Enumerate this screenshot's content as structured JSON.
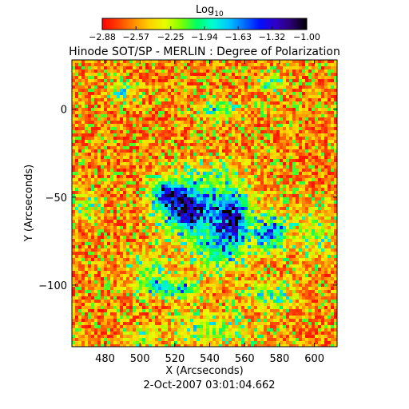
{
  "chart_data": {
    "type": "heatmap",
    "title": "Hinode SOT/SP - MERLIN : Degree of Polarization",
    "date": "2-Oct-2007 03:01:04.662",
    "xlabel": "X (Arcseconds)",
    "ylabel": "Y (Arcseconds)",
    "xlim": [
      461,
      613
    ],
    "ylim": [
      -135,
      28
    ],
    "x_ticks": [
      480,
      500,
      520,
      540,
      560,
      580,
      600
    ],
    "y_ticks": [
      0,
      -50,
      -100
    ],
    "colorbar": {
      "label_main": "Log",
      "label_sub": "10",
      "range": [
        -2.88,
        -1.0
      ],
      "tick_labels": [
        "-2.88",
        "-2.57",
        "-2.25",
        "-1.94",
        "-1.63",
        "-1.32",
        "-1.00"
      ],
      "tick_values": [
        -2.88,
        -2.57,
        -2.25,
        -1.94,
        -1.63,
        -1.32,
        -1.0
      ],
      "colors": [
        "#ff0000",
        "#ff4000",
        "#ff8c00",
        "#ffd000",
        "#e6ff00",
        "#80ff00",
        "#00ff60",
        "#00ffd0",
        "#00c8ff",
        "#0070ff",
        "#0010ff",
        "#3000c8",
        "#2a0070",
        "#000000"
      ]
    },
    "background_value": -2.85,
    "active_regions": [
      {
        "x": 528,
        "y": -58,
        "sx": 11,
        "sy": 9,
        "peak": 1.0
      },
      {
        "x": 553,
        "y": -62,
        "sx": 7,
        "sy": 10,
        "peak": 0.95
      },
      {
        "x": 516,
        "y": -48,
        "sx": 6,
        "sy": 5,
        "peak": 0.8
      },
      {
        "x": 575,
        "y": -70,
        "sx": 6,
        "sy": 7,
        "peak": 0.75
      },
      {
        "x": 510,
        "y": -100,
        "sx": 9,
        "sy": 4,
        "peak": 0.55
      },
      {
        "x": 527,
        "y": -102,
        "sx": 6,
        "sy": 4,
        "peak": 0.45
      },
      {
        "x": 545,
        "y": -80,
        "sx": 12,
        "sy": 8,
        "peak": 0.45
      },
      {
        "x": 575,
        "y": -105,
        "sx": 10,
        "sy": 5,
        "peak": 0.35
      },
      {
        "x": 505,
        "y": -88,
        "sx": 8,
        "sy": 5,
        "peak": 0.3
      },
      {
        "x": 540,
        "y": -40,
        "sx": 14,
        "sy": 8,
        "peak": 0.3
      },
      {
        "x": 540,
        "y": -125,
        "sx": 18,
        "sy": 6,
        "peak": 0.3
      },
      {
        "x": 600,
        "y": -70,
        "sx": 8,
        "sy": 10,
        "peak": 0.3
      },
      {
        "x": 545,
        "y": 0,
        "sx": 8,
        "sy": 4,
        "peak": 0.4
      },
      {
        "x": 575,
        "y": 15,
        "sx": 5,
        "sy": 4,
        "peak": 0.35
      },
      {
        "x": 490,
        "y": 10,
        "sx": 6,
        "sy": 4,
        "peak": 0.3
      },
      {
        "x": 500,
        "y": -130,
        "sx": 6,
        "sy": 4,
        "peak": 0.3
      },
      {
        "x": 470,
        "y": -55,
        "sx": 5,
        "sy": 6,
        "peak": 0.3
      }
    ]
  }
}
